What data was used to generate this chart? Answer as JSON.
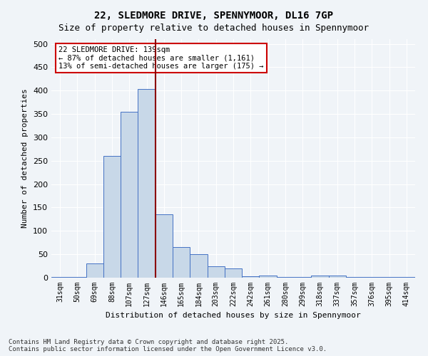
{
  "title1": "22, SLEDMORE DRIVE, SPENNYMOOR, DL16 7GP",
  "title2": "Size of property relative to detached houses in Spennymoor",
  "xlabel": "Distribution of detached houses by size in Spennymoor",
  "ylabel": "Number of detached properties",
  "categories": [
    "31sqm",
    "50sqm",
    "69sqm",
    "88sqm",
    "107sqm",
    "127sqm",
    "146sqm",
    "165sqm",
    "184sqm",
    "203sqm",
    "222sqm",
    "242sqm",
    "261sqm",
    "280sqm",
    "299sqm",
    "318sqm",
    "337sqm",
    "357sqm",
    "376sqm",
    "395sqm",
    "414sqm"
  ],
  "values": [
    2,
    2,
    30,
    260,
    355,
    403,
    135,
    65,
    50,
    25,
    20,
    3,
    5,
    2,
    1,
    5,
    5,
    2,
    2,
    2,
    2
  ],
  "bar_color": "#c8d8e8",
  "bar_edge_color": "#4472c4",
  "vline_x_index": 6,
  "vline_color": "#8b0000",
  "ylim": [
    0,
    510
  ],
  "yticks": [
    0,
    50,
    100,
    150,
    200,
    250,
    300,
    350,
    400,
    450,
    500
  ],
  "annotation_text": "22 SLEDMORE DRIVE: 139sqm\n← 87% of detached houses are smaller (1,161)\n13% of semi-detached houses are larger (175) →",
  "annotation_box_color": "#ffffff",
  "annotation_box_edge": "#cc0000",
  "footer_text": "Contains HM Land Registry data © Crown copyright and database right 2025.\nContains public sector information licensed under the Open Government Licence v3.0.",
  "bg_color": "#f0f4f8",
  "plot_bg_color": "#f0f4f8",
  "grid_color": "#ffffff"
}
